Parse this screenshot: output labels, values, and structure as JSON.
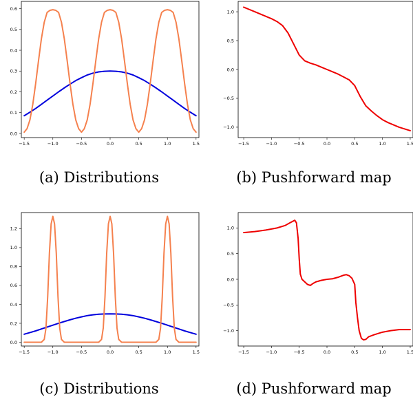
{
  "chart_data": [
    {
      "type": "line",
      "caption": "(a) Distributions",
      "xlim": [
        -1.55,
        1.55
      ],
      "ylim": [
        -0.02,
        0.635
      ],
      "xticks": [
        -1.5,
        -1.0,
        -0.5,
        0.0,
        0.5,
        1.0,
        1.5
      ],
      "yticks": [
        0.0,
        0.1,
        0.2,
        0.3,
        0.4,
        0.5,
        0.6
      ],
      "grid": false,
      "series": [
        {
          "color": "#0000dd",
          "x": [
            -1.5,
            -1.4,
            -1.3,
            -1.2,
            -1.1,
            -1.0,
            -0.9,
            -0.8,
            -0.7,
            -0.6,
            -0.5,
            -0.4,
            -0.3,
            -0.2,
            -0.1,
            0.0,
            0.1,
            0.2,
            0.3,
            0.4,
            0.5,
            0.6,
            0.7,
            0.8,
            0.9,
            1.0,
            1.1,
            1.2,
            1.3,
            1.4,
            1.5
          ],
          "y": [
            0.085,
            0.102,
            0.12,
            0.14,
            0.16,
            0.18,
            0.2,
            0.219,
            0.237,
            0.254,
            0.268,
            0.281,
            0.29,
            0.296,
            0.299,
            0.3,
            0.299,
            0.296,
            0.29,
            0.281,
            0.268,
            0.254,
            0.237,
            0.219,
            0.2,
            0.18,
            0.16,
            0.14,
            0.12,
            0.102,
            0.085
          ]
        },
        {
          "color": "#f5814e",
          "x": [
            -1.5,
            -1.45,
            -1.4,
            -1.35,
            -1.3,
            -1.25,
            -1.2,
            -1.15,
            -1.1,
            -1.05,
            -1.0,
            -0.95,
            -0.9,
            -0.85,
            -0.8,
            -0.75,
            -0.7,
            -0.65,
            -0.6,
            -0.55,
            -0.5,
            -0.45,
            -0.4,
            -0.35,
            -0.3,
            -0.25,
            -0.2,
            -0.15,
            -0.1,
            -0.05,
            0.0,
            0.05,
            0.1,
            0.15,
            0.2,
            0.25,
            0.3,
            0.35,
            0.4,
            0.45,
            0.5,
            0.55,
            0.6,
            0.65,
            0.7,
            0.75,
            0.8,
            0.85,
            0.9,
            0.95,
            1.0,
            1.05,
            1.1,
            1.15,
            1.2,
            1.25,
            1.3,
            1.35,
            1.4,
            1.45,
            1.5
          ],
          "y": [
            0.006,
            0.023,
            0.065,
            0.14,
            0.24,
            0.35,
            0.455,
            0.535,
            0.582,
            0.592,
            0.595,
            0.592,
            0.582,
            0.535,
            0.455,
            0.35,
            0.24,
            0.14,
            0.065,
            0.023,
            0.006,
            0.023,
            0.065,
            0.14,
            0.24,
            0.35,
            0.455,
            0.535,
            0.582,
            0.592,
            0.595,
            0.592,
            0.582,
            0.535,
            0.455,
            0.35,
            0.24,
            0.14,
            0.065,
            0.023,
            0.006,
            0.023,
            0.065,
            0.14,
            0.24,
            0.35,
            0.455,
            0.535,
            0.582,
            0.592,
            0.595,
            0.592,
            0.582,
            0.535,
            0.455,
            0.35,
            0.24,
            0.14,
            0.065,
            0.023,
            0.006
          ]
        }
      ]
    },
    {
      "type": "line",
      "caption": "(b) Pushforward map",
      "xlim": [
        -1.6,
        1.55
      ],
      "ylim": [
        -1.18,
        1.18
      ],
      "xticks": [
        -1.5,
        -1.0,
        -0.5,
        0.0,
        0.5,
        1.0,
        1.5
      ],
      "yticks": [
        -1.0,
        -0.5,
        0.0,
        0.5,
        1.0
      ],
      "grid": false,
      "series": [
        {
          "color": "#ee0000",
          "x": [
            -1.5,
            -1.4,
            -1.3,
            -1.2,
            -1.1,
            -1.0,
            -0.9,
            -0.8,
            -0.7,
            -0.6,
            -0.5,
            -0.4,
            -0.3,
            -0.2,
            -0.1,
            0.0,
            0.1,
            0.2,
            0.3,
            0.4,
            0.5,
            0.6,
            0.7,
            0.8,
            0.9,
            1.0,
            1.1,
            1.2,
            1.3,
            1.4,
            1.5
          ],
          "y": [
            1.08,
            1.04,
            1.0,
            0.96,
            0.92,
            0.88,
            0.83,
            0.76,
            0.63,
            0.44,
            0.25,
            0.15,
            0.11,
            0.08,
            0.04,
            0.0,
            -0.04,
            -0.08,
            -0.13,
            -0.18,
            -0.28,
            -0.47,
            -0.63,
            -0.72,
            -0.8,
            -0.87,
            -0.92,
            -0.96,
            -1.0,
            -1.03,
            -1.06
          ]
        }
      ]
    },
    {
      "type": "line",
      "caption": "(c) Distributions",
      "xlim": [
        -1.55,
        1.55
      ],
      "ylim": [
        -0.04,
        1.37
      ],
      "xticks": [
        -1.5,
        -1.0,
        -0.5,
        0.0,
        0.5,
        1.0,
        1.5
      ],
      "yticks": [
        0.0,
        0.2,
        0.4,
        0.6,
        0.8,
        1.0,
        1.2
      ],
      "grid": false,
      "series": [
        {
          "color": "#0000dd",
          "x": [
            -1.5,
            -1.4,
            -1.3,
            -1.2,
            -1.1,
            -1.0,
            -0.9,
            -0.8,
            -0.7,
            -0.6,
            -0.5,
            -0.4,
            -0.3,
            -0.2,
            -0.1,
            0.0,
            0.1,
            0.2,
            0.3,
            0.4,
            0.5,
            0.6,
            0.7,
            0.8,
            0.9,
            1.0,
            1.1,
            1.2,
            1.3,
            1.4,
            1.5
          ],
          "y": [
            0.085,
            0.102,
            0.12,
            0.14,
            0.16,
            0.18,
            0.2,
            0.219,
            0.237,
            0.254,
            0.268,
            0.281,
            0.29,
            0.296,
            0.299,
            0.3,
            0.299,
            0.296,
            0.29,
            0.281,
            0.268,
            0.254,
            0.237,
            0.219,
            0.2,
            0.18,
            0.16,
            0.14,
            0.12,
            0.102,
            0.085
          ]
        },
        {
          "color": "#f5814e",
          "x": [
            -1.5,
            -1.2,
            -1.15,
            -1.12,
            -1.09,
            -1.06,
            -1.03,
            -1.0,
            -0.97,
            -0.94,
            -0.91,
            -0.88,
            -0.85,
            -0.8,
            -0.2,
            -0.15,
            -0.12,
            -0.09,
            -0.06,
            -0.03,
            0.0,
            0.03,
            0.06,
            0.09,
            0.12,
            0.15,
            0.2,
            0.8,
            0.85,
            0.88,
            0.91,
            0.94,
            0.97,
            1.0,
            1.03,
            1.06,
            1.09,
            1.12,
            1.15,
            1.2,
            1.5
          ],
          "y": [
            0.0,
            0.0,
            0.03,
            0.15,
            0.48,
            0.94,
            1.25,
            1.33,
            1.25,
            0.94,
            0.48,
            0.15,
            0.03,
            0.0,
            0.0,
            0.03,
            0.15,
            0.48,
            0.94,
            1.25,
            1.33,
            1.25,
            0.94,
            0.48,
            0.15,
            0.03,
            0.0,
            0.0,
            0.03,
            0.15,
            0.48,
            0.94,
            1.25,
            1.33,
            1.25,
            0.94,
            0.48,
            0.15,
            0.03,
            0.0,
            0.0
          ]
        }
      ]
    },
    {
      "type": "line",
      "caption": "(d) Pushforward map",
      "xlim": [
        -1.6,
        1.55
      ],
      "ylim": [
        -1.3,
        1.3
      ],
      "xticks": [
        -1.5,
        -1.0,
        -0.5,
        0.0,
        0.5,
        1.0,
        1.5
      ],
      "yticks": [
        -1.0,
        -0.5,
        0.0,
        0.5,
        1.0
      ],
      "grid": false,
      "series": [
        {
          "color": "#ee0000",
          "x": [
            -1.5,
            -1.3,
            -1.1,
            -0.9,
            -0.75,
            -0.65,
            -0.58,
            -0.55,
            -0.52,
            -0.5,
            -0.48,
            -0.45,
            -0.4,
            -0.35,
            -0.3,
            -0.25,
            -0.2,
            -0.1,
            0.0,
            0.1,
            0.2,
            0.3,
            0.35,
            0.4,
            0.45,
            0.5,
            0.52,
            0.55,
            0.58,
            0.62,
            0.66,
            0.7,
            0.75,
            0.85,
            1.0,
            1.15,
            1.3,
            1.5
          ],
          "y": [
            0.91,
            0.93,
            0.96,
            1.0,
            1.05,
            1.11,
            1.15,
            1.1,
            0.8,
            0.4,
            0.1,
            0.0,
            -0.05,
            -0.1,
            -0.12,
            -0.08,
            -0.05,
            -0.02,
            0.0,
            0.01,
            0.04,
            0.08,
            0.09,
            0.07,
            0.02,
            -0.1,
            -0.45,
            -0.75,
            -1.0,
            -1.15,
            -1.18,
            -1.17,
            -1.12,
            -1.08,
            -1.03,
            -1.0,
            -0.98,
            -0.98
          ]
        }
      ]
    }
  ]
}
